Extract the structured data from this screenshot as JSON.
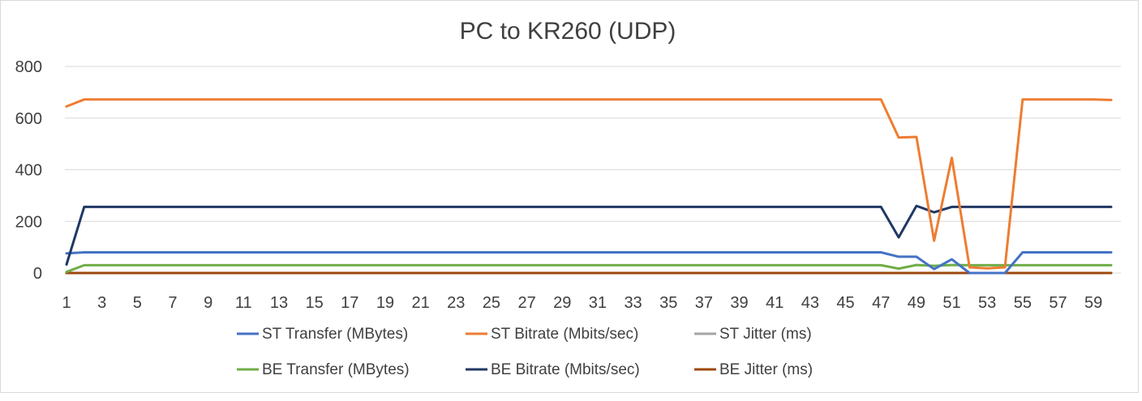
{
  "chart_data": {
    "type": "line",
    "title": "PC to KR260 (UDP)",
    "xlabel": "",
    "ylabel": "",
    "x": [
      1,
      2,
      3,
      4,
      5,
      6,
      7,
      8,
      9,
      10,
      11,
      12,
      13,
      14,
      15,
      16,
      17,
      18,
      19,
      20,
      21,
      22,
      23,
      24,
      25,
      26,
      27,
      28,
      29,
      30,
      31,
      32,
      33,
      34,
      35,
      36,
      37,
      38,
      39,
      40,
      41,
      42,
      43,
      44,
      45,
      46,
      47,
      48,
      49,
      50,
      51,
      52,
      53,
      54,
      55,
      56,
      57,
      58,
      59,
      60
    ],
    "x_tick_labels": [
      "1",
      "3",
      "5",
      "7",
      "9",
      "11",
      "13",
      "15",
      "17",
      "19",
      "21",
      "23",
      "25",
      "27",
      "29",
      "31",
      "33",
      "35",
      "37",
      "39",
      "41",
      "43",
      "45",
      "47",
      "49",
      "51",
      "53",
      "55",
      "57",
      "59"
    ],
    "ylim": [
      0,
      800
    ],
    "y_ticks": [
      0,
      200,
      400,
      600,
      800
    ],
    "grid": true,
    "legend_position": "bottom",
    "series": [
      {
        "name": "ST Transfer (MBytes)",
        "color": "#4472c4",
        "values": [
          76,
          80,
          80,
          80,
          80,
          80,
          80,
          80,
          80,
          80,
          80,
          80,
          80,
          80,
          80,
          80,
          80,
          80,
          80,
          80,
          80,
          80,
          80,
          80,
          80,
          80,
          80,
          80,
          80,
          80,
          80,
          80,
          80,
          80,
          80,
          80,
          80,
          80,
          80,
          80,
          80,
          80,
          80,
          80,
          80,
          80,
          80,
          63,
          63,
          15,
          53,
          0,
          0,
          0,
          80,
          80,
          80,
          80,
          80,
          80
        ]
      },
      {
        "name": "ST Bitrate (Mbits/sec)",
        "color": "#ed7d31",
        "values": [
          645,
          672,
          672,
          672,
          672,
          672,
          672,
          672,
          672,
          672,
          672,
          672,
          672,
          672,
          672,
          672,
          672,
          672,
          672,
          672,
          672,
          672,
          672,
          672,
          672,
          672,
          672,
          672,
          672,
          672,
          672,
          672,
          672,
          672,
          672,
          672,
          672,
          672,
          672,
          672,
          672,
          672,
          672,
          672,
          672,
          672,
          672,
          525,
          527,
          125,
          446,
          22,
          18,
          22,
          672,
          672,
          672,
          672,
          672,
          670
        ]
      },
      {
        "name": "ST Jitter (ms)",
        "color": "#a5a5a5",
        "values": [
          0,
          0,
          0,
          0,
          0,
          0,
          0,
          0,
          0,
          0,
          0,
          0,
          0,
          0,
          0,
          0,
          0,
          0,
          0,
          0,
          0,
          0,
          0,
          0,
          0,
          0,
          0,
          0,
          0,
          0,
          0,
          0,
          0,
          0,
          0,
          0,
          0,
          0,
          0,
          0,
          0,
          0,
          0,
          0,
          0,
          0,
          0,
          0,
          0,
          0,
          0,
          0,
          0,
          0,
          0,
          0,
          0,
          0,
          0,
          0
        ]
      },
      {
        "name": "BE Transfer (MBytes)",
        "color": "#70ad47",
        "values": [
          4,
          30,
          30,
          30,
          30,
          30,
          30,
          30,
          30,
          30,
          30,
          30,
          30,
          30,
          30,
          30,
          30,
          30,
          30,
          30,
          30,
          30,
          30,
          30,
          30,
          30,
          30,
          30,
          30,
          30,
          30,
          30,
          30,
          30,
          30,
          30,
          30,
          30,
          30,
          30,
          30,
          30,
          30,
          30,
          30,
          30,
          30,
          17,
          31,
          28,
          31,
          30,
          30,
          30,
          30,
          30,
          30,
          30,
          30,
          30
        ]
      },
      {
        "name": "BE Bitrate (Mbits/sec)",
        "color": "#203864",
        "values": [
          33,
          256,
          256,
          256,
          256,
          256,
          256,
          256,
          256,
          256,
          256,
          256,
          256,
          256,
          256,
          256,
          256,
          256,
          256,
          256,
          256,
          256,
          256,
          256,
          256,
          256,
          256,
          256,
          256,
          256,
          256,
          256,
          256,
          256,
          256,
          256,
          256,
          256,
          256,
          256,
          256,
          256,
          256,
          256,
          256,
          256,
          256,
          138,
          260,
          235,
          256,
          256,
          256,
          256,
          256,
          256,
          256,
          256,
          256,
          256
        ]
      },
      {
        "name": "BE Jitter (ms)",
        "color": "#9e480e",
        "values": [
          0,
          0,
          0,
          0,
          0,
          0,
          0,
          0,
          0,
          0,
          0,
          0,
          0,
          0,
          0,
          0,
          0,
          0,
          0,
          0,
          0,
          0,
          0,
          0,
          0,
          0,
          0,
          0,
          0,
          0,
          0,
          0,
          0,
          0,
          0,
          0,
          0,
          0,
          0,
          0,
          0,
          0,
          0,
          0,
          0,
          0,
          0,
          0,
          0,
          0,
          0,
          0,
          0,
          0,
          0,
          0,
          0,
          0,
          0,
          0
        ]
      }
    ]
  }
}
